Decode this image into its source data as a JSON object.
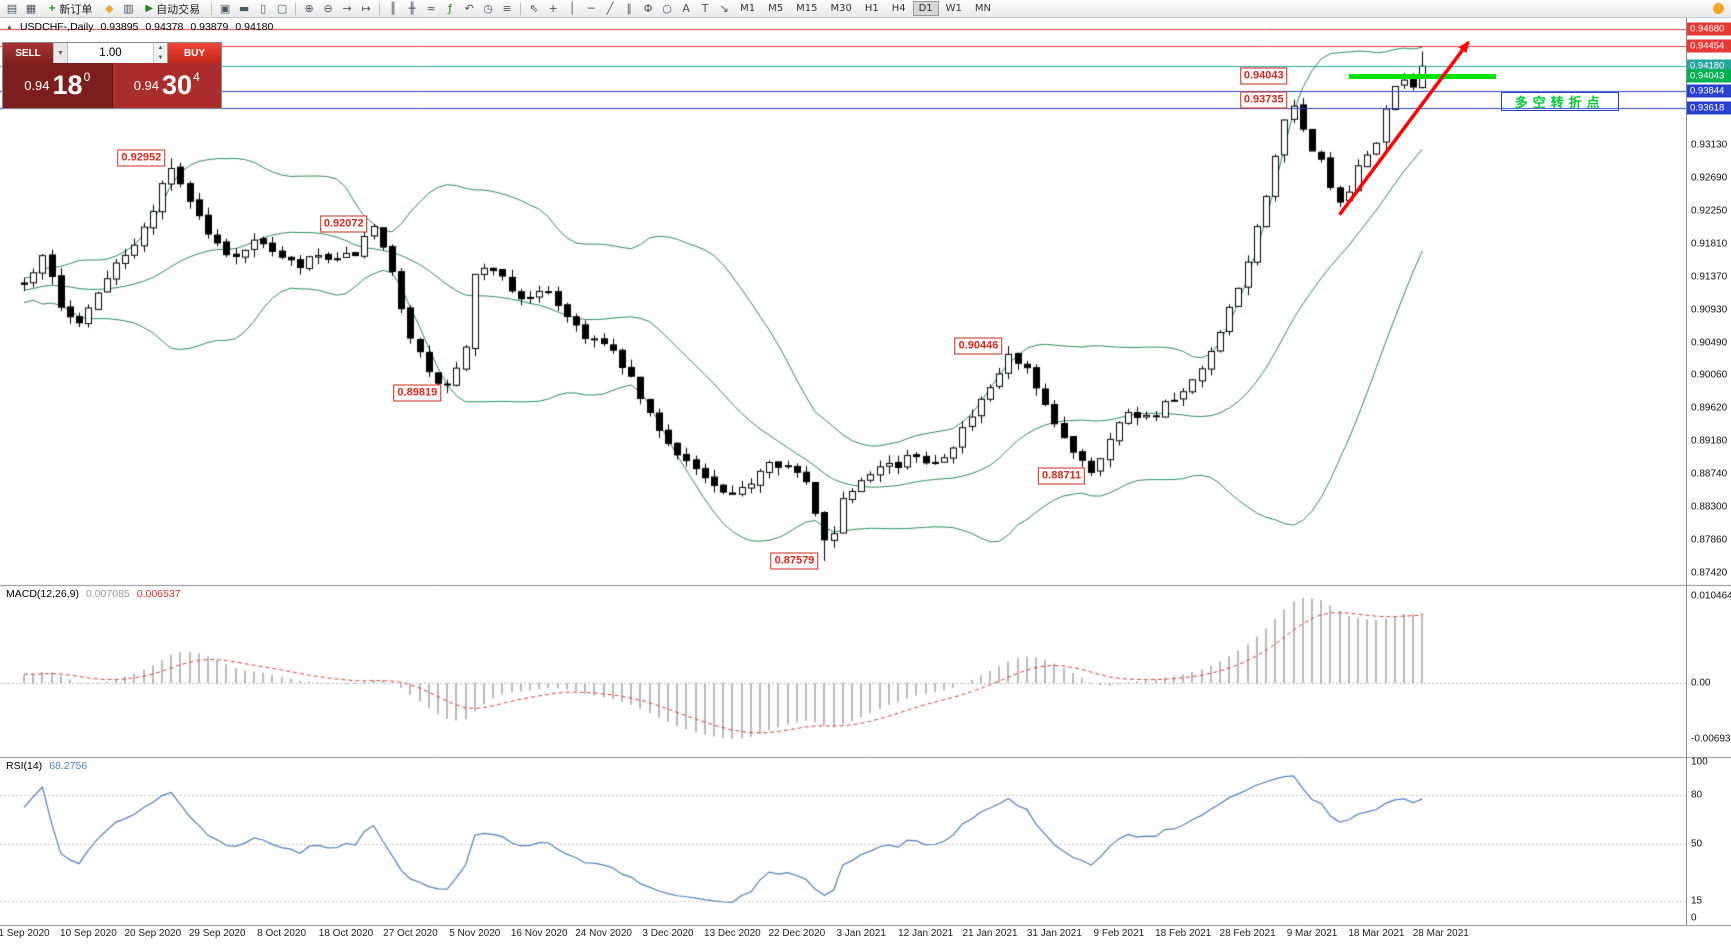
{
  "toolbar": {
    "new_order_label": "新订单",
    "autotrading_label": "自动交易",
    "group1": [
      {
        "name": "new-chart-icon",
        "glyph": "▤"
      },
      {
        "name": "chart-profiles-icon",
        "glyph": "▦"
      }
    ],
    "group2": [
      {
        "name": "market-watch-icon",
        "glyph": "◆",
        "color": "#f0a330"
      },
      {
        "name": "navigator-icon",
        "glyph": "▥"
      }
    ],
    "group3": [
      {
        "sep": true
      },
      {
        "name": "cascade-windows-icon",
        "glyph": "▣"
      },
      {
        "name": "tile-horizontally-icon",
        "glyph": "▬"
      },
      {
        "name": "tile-vertically-icon",
        "glyph": "▯"
      },
      {
        "name": "arrange-windows-icon",
        "glyph": "▢"
      },
      {
        "sep": true
      },
      {
        "name": "zoom-in-icon",
        "glyph": "⊕"
      },
      {
        "name": "zoom-out-icon",
        "glyph": "⊖"
      },
      {
        "name": "auto-scroll-icon",
        "glyph": "→"
      },
      {
        "name": "chart-shift-icon",
        "glyph": "↦"
      },
      {
        "sep": true
      },
      {
        "name": "bar-chart-icon",
        "glyph": "║"
      },
      {
        "name": "candlestick-chart-icon",
        "glyph": "╫"
      },
      {
        "name": "line-chart-icon",
        "glyph": "≈"
      },
      {
        "name": "indicators-icon",
        "glyph": "ƒ",
        "color": "#1c7c1c"
      },
      {
        "name": "undo-icon",
        "glyph": "↶"
      },
      {
        "name": "periods-icon",
        "glyph": "◷"
      },
      {
        "name": "templates-icon",
        "glyph": "≡"
      },
      {
        "sep": true
      },
      {
        "name": "cursor-icon",
        "glyph": "⇖"
      },
      {
        "name": "crosshair-icon",
        "glyph": "+"
      },
      {
        "name": "vertical-line-icon",
        "glyph": "│"
      },
      {
        "name": "horizontal-line-icon",
        "glyph": "─"
      },
      {
        "name": "trendline-icon",
        "glyph": "╱"
      },
      {
        "name": "channel-icon",
        "glyph": "∥"
      },
      {
        "name": "fibonacci-icon",
        "glyph": "Φ"
      },
      {
        "name": "shapes-icon",
        "glyph": "○"
      },
      {
        "name": "text-label-icon",
        "glyph": "A"
      },
      {
        "name": "text-icon",
        "glyph": "T"
      },
      {
        "name": "arrows-icon",
        "glyph": "↘"
      }
    ],
    "timeframes": [
      {
        "label": "M1"
      },
      {
        "label": "M5"
      },
      {
        "label": "M15"
      },
      {
        "label": "M30"
      },
      {
        "label": "H1"
      },
      {
        "label": "H4"
      },
      {
        "label": "D1",
        "active": true
      },
      {
        "label": "W1"
      },
      {
        "label": "MN"
      }
    ],
    "community_icon_color": "#f5a623"
  },
  "chart": {
    "header": {
      "symbol": "USDCHF-,Daily",
      "open": "0.93895",
      "high": "0.94378",
      "low": "0.93879",
      "close": "0.94180"
    },
    "trade_panel": {
      "sell_label": "SELL",
      "buy_label": "BUY",
      "volume": "1.00",
      "sell_price_prefix": "0.94",
      "sell_price_big": "18",
      "sell_price_sup": "0",
      "buy_price_prefix": "0.94",
      "buy_price_big": "30",
      "buy_price_sup": "4"
    }
  },
  "chart_data": {
    "type": "candlestick",
    "symbol": "USDCHF",
    "timeframe": "Daily",
    "ohlc_header": {
      "open": 0.93895,
      "high": 0.94378,
      "low": 0.93879,
      "close": 0.9418
    },
    "price_axis": {
      "ticks": [
        "0.93130",
        "0.92690",
        "0.92250",
        "0.91810",
        "0.91370",
        "0.90930",
        "0.90490",
        "0.90060",
        "0.89620",
        "0.89180",
        "0.88740",
        "0.88300",
        "0.87860",
        "0.87420"
      ],
      "markers": [
        {
          "value": "0.94680",
          "color": "#e53935"
        },
        {
          "value": "0.94454",
          "color": "#e53935"
        },
        {
          "value": "0.94180",
          "color": "#26a69a"
        },
        {
          "value": "0.94043",
          "color": "#00b050"
        },
        {
          "value": "0.93844",
          "color": "#2a41d0"
        },
        {
          "value": "0.93618",
          "color": "#2a41d0"
        }
      ]
    },
    "levels": [
      {
        "price": 0.9468,
        "color": "#e53935"
      },
      {
        "price": 0.94454,
        "color": "#e53935"
      },
      {
        "price": 0.9418,
        "color": "#26a69a"
      },
      {
        "price": 0.93844,
        "color": "#2a41d0"
      },
      {
        "price": 0.93618,
        "color": "#2a41d0"
      }
    ],
    "green_segment": {
      "price": 0.94043,
      "from_bar": 144,
      "to_bar": 160,
      "color": "#00e400"
    },
    "trend_arrow": {
      "from_bar": 143,
      "from_price": 0.922,
      "to_bar": 157,
      "to_price": 0.945,
      "color": "#ff0000"
    },
    "annotation": {
      "text": "多空转折点",
      "bar": 160.5,
      "price": 0.93835,
      "text_color": "#00c832",
      "border_color": "#2a41d0"
    },
    "callouts": [
      {
        "text": "0.92952",
        "price": 0.92952,
        "bar": 16
      },
      {
        "text": "0.92072",
        "price": 0.92072,
        "bar": 38
      },
      {
        "text": "0.89819",
        "price": 0.89819,
        "bar": 46
      },
      {
        "text": "0.87579",
        "price": 0.87579,
        "bar": 87
      },
      {
        "text": "0.90446",
        "price": 0.90446,
        "bar": 107
      },
      {
        "text": "0.88711",
        "price": 0.88711,
        "bar": 116
      },
      {
        "text": "0.94043",
        "price": 0.94043,
        "bar": 138
      },
      {
        "text": "0.93735",
        "price": 0.93735,
        "bar": 138
      }
    ],
    "date_axis": [
      "1 Sep 2020",
      "10 Sep 2020",
      "20 Sep 2020",
      "29 Sep 2020",
      "8 Oct 2020",
      "18 Oct 2020",
      "27 Oct 2020",
      "5 Nov 2020",
      "16 Nov 2020",
      "24 Nov 2020",
      "3 Dec 2020",
      "13 Dec 2020",
      "22 Dec 2020",
      "3 Jan 2021",
      "12 Jan 2021",
      "21 Jan 2021",
      "31 Jan 2021",
      "9 Feb 2021",
      "18 Feb 2021",
      "28 Feb 2021",
      "9 Mar 2021",
      "18 Mar 2021",
      "28 Mar 2021"
    ],
    "bollinger": {
      "period": 20,
      "deviation": 2,
      "color": "#2e8b57"
    },
    "series_anchors": [
      [
        -26,
        0.908
      ],
      [
        -13,
        0.912
      ],
      [
        0,
        0.9125
      ],
      [
        2,
        0.917
      ],
      [
        4,
        0.9095
      ],
      [
        6,
        0.908
      ],
      [
        8,
        0.912
      ],
      [
        10,
        0.916
      ],
      [
        12,
        0.9175
      ],
      [
        14,
        0.923
      ],
      [
        16,
        0.9285
      ],
      [
        18,
        0.924
      ],
      [
        20,
        0.9195
      ],
      [
        22,
        0.9165
      ],
      [
        24,
        0.9175
      ],
      [
        26,
        0.9185
      ],
      [
        28,
        0.916
      ],
      [
        30,
        0.915
      ],
      [
        32,
        0.9165
      ],
      [
        34,
        0.9155
      ],
      [
        36,
        0.917
      ],
      [
        38,
        0.92
      ],
      [
        40,
        0.914
      ],
      [
        42,
        0.906
      ],
      [
        44,
        0.9005
      ],
      [
        46,
        0.899
      ],
      [
        48,
        0.904
      ],
      [
        49,
        0.9135
      ],
      [
        51,
        0.915
      ],
      [
        53,
        0.912
      ],
      [
        55,
        0.9105
      ],
      [
        57,
        0.912
      ],
      [
        59,
        0.9085
      ],
      [
        61,
        0.906
      ],
      [
        63,
        0.9045
      ],
      [
        65,
        0.902
      ],
      [
        67,
        0.8975
      ],
      [
        69,
        0.893
      ],
      [
        71,
        0.8905
      ],
      [
        73,
        0.888
      ],
      [
        75,
        0.8855
      ],
      [
        77,
        0.884
      ],
      [
        79,
        0.8865
      ],
      [
        81,
        0.8895
      ],
      [
        83,
        0.8885
      ],
      [
        85,
        0.886
      ],
      [
        86,
        0.882
      ],
      [
        87,
        0.879
      ],
      [
        88,
        0.88
      ],
      [
        89,
        0.884
      ],
      [
        91,
        0.887
      ],
      [
        93,
        0.889
      ],
      [
        95,
        0.8885
      ],
      [
        97,
        0.89
      ],
      [
        99,
        0.889
      ],
      [
        101,
        0.8915
      ],
      [
        103,
        0.895
      ],
      [
        105,
        0.8985
      ],
      [
        107,
        0.903
      ],
      [
        109,
        0.901
      ],
      [
        111,
        0.896
      ],
      [
        113,
        0.892
      ],
      [
        115,
        0.8895
      ],
      [
        116,
        0.888
      ],
      [
        118,
        0.892
      ],
      [
        120,
        0.896
      ],
      [
        122,
        0.895
      ],
      [
        124,
        0.8965
      ],
      [
        126,
        0.898
      ],
      [
        128,
        0.901
      ],
      [
        130,
        0.906
      ],
      [
        132,
        0.912
      ],
      [
        134,
        0.92
      ],
      [
        136,
        0.93
      ],
      [
        137,
        0.934
      ],
      [
        138,
        0.936
      ],
      [
        139,
        0.933
      ],
      [
        140,
        0.931
      ],
      [
        141,
        0.929
      ],
      [
        142,
        0.926
      ],
      [
        143,
        0.923
      ],
      [
        144,
        0.925
      ],
      [
        145,
        0.928
      ],
      [
        146,
        0.93
      ],
      [
        147,
        0.932
      ],
      [
        148,
        0.936
      ],
      [
        149,
        0.9385
      ],
      [
        150,
        0.94
      ],
      [
        151,
        0.939
      ],
      [
        152,
        0.9418
      ]
    ],
    "overrides": {
      "16": {
        "h": 0.92952
      },
      "38": {
        "h": 0.92072
      },
      "46": {
        "l": 0.89819
      },
      "87": {
        "l": 0.87579
      },
      "107": {
        "h": 0.90446
      },
      "116": {
        "l": 0.88711
      },
      "138": {
        "h": 0.93735
      },
      "152": {
        "o": 0.93895,
        "h": 0.94378,
        "l": 0.93879,
        "c": 0.9418
      }
    },
    "indicators": {
      "macd": {
        "label": "MACD(12,26,9)",
        "main_value": "0.007085",
        "signal_value": "0.006537",
        "axis_max": "0.010464",
        "axis_zero": "0.00",
        "axis_min": "-0.006934",
        "histogram_color": "#b9b9b9",
        "signal_color": "#e53935"
      },
      "rsi": {
        "label": "RSI(14)",
        "value": "68.2756",
        "levels": [
          100,
          80,
          50,
          15,
          0
        ],
        "line_color": "#4f81bd"
      }
    }
  }
}
